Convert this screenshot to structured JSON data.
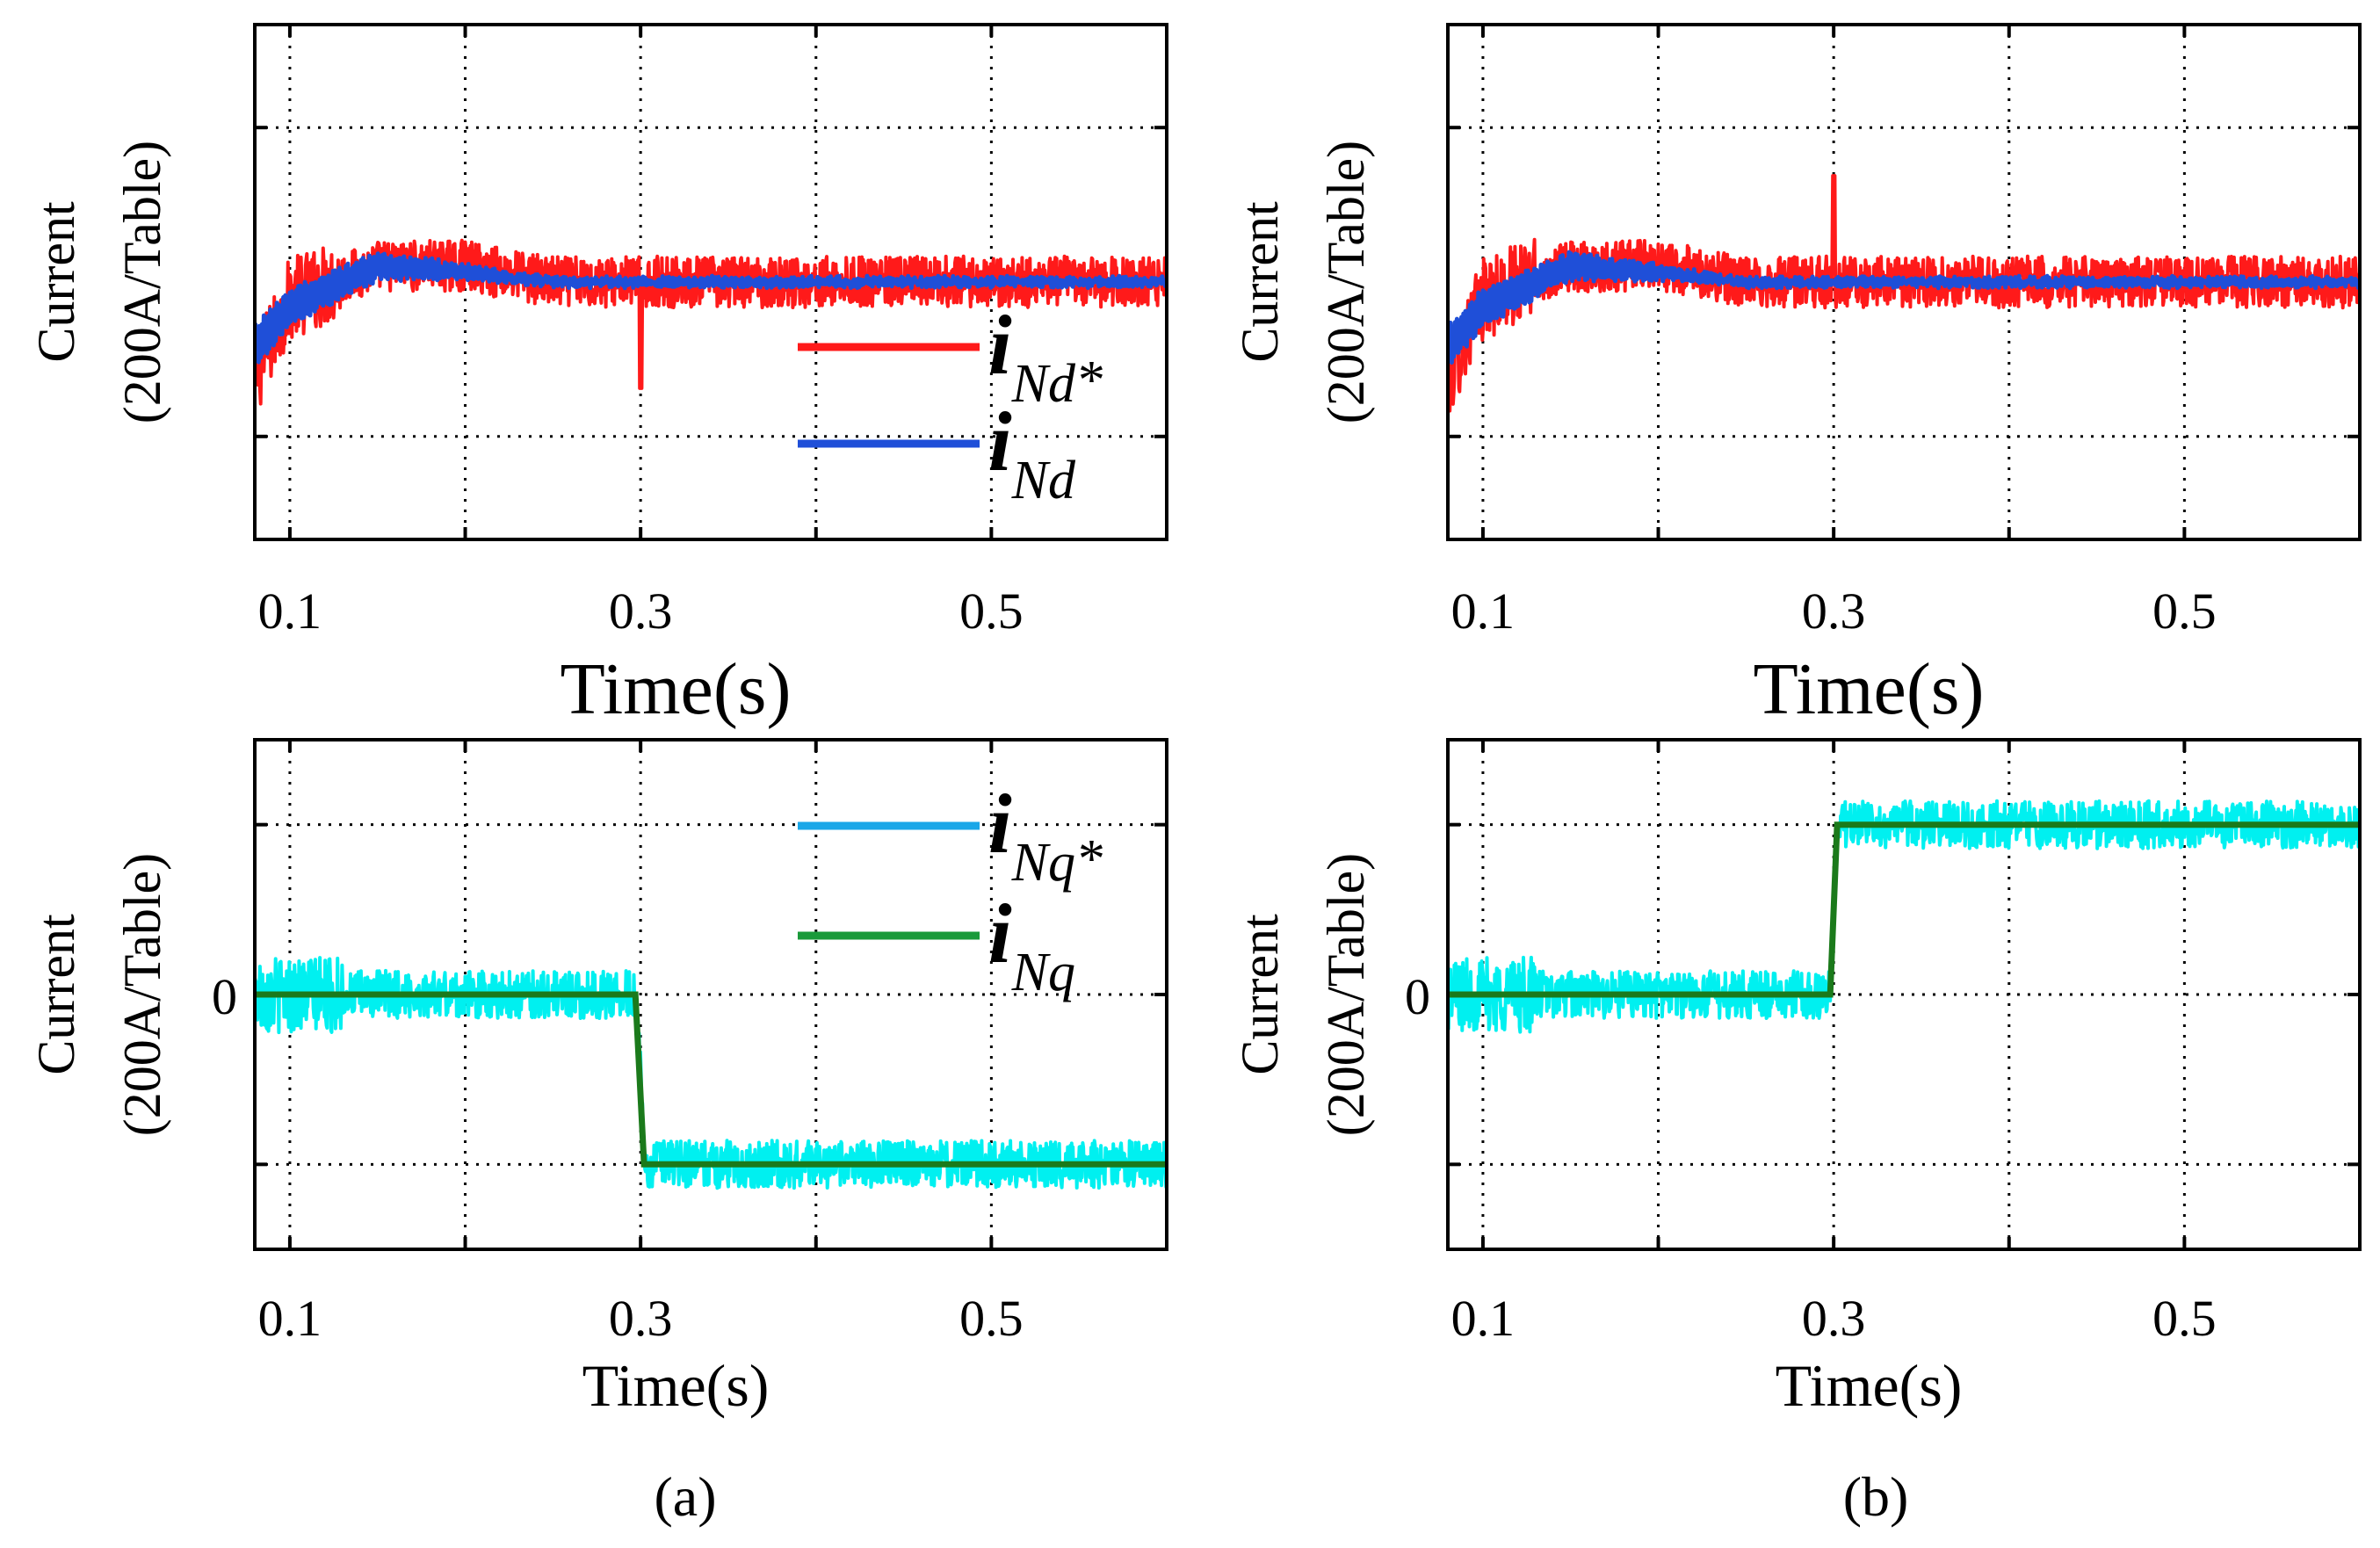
{
  "chart_data": [
    {
      "id": "a-top",
      "type": "line",
      "xlabel": "Time(s)",
      "ylabel": [
        "Current",
        "(200A/Table)"
      ],
      "xlim": [
        0.08,
        0.6
      ],
      "ylim": [
        -0.8,
        0.8
      ],
      "xticks": [
        0.1,
        0.3,
        0.5
      ],
      "xtick_labels": [
        "0.1",
        "0.3",
        "0.5"
      ],
      "ytick_labels": [],
      "grid": true,
      "legend_placement": "right",
      "legend": [
        {
          "symbol": "i",
          "sub": "Nd",
          "sup": "*",
          "color": "#ff1a1a"
        },
        {
          "symbol": "i",
          "sub": "Nd",
          "sup": "",
          "color": "#1f4fd8"
        }
      ],
      "series": [
        {
          "legend_index": 0,
          "color": "#ff1a1a",
          "kind": "noisy-step",
          "x": [
            0.08,
            0.1,
            0.15,
            0.2,
            0.25,
            0.6
          ],
          "y": [
            -0.3,
            -0.05,
            0.05,
            0.05,
            0.0,
            0.0
          ],
          "noise": 0.08,
          "spike": {
            "x": 0.3,
            "y": -0.33
          }
        },
        {
          "legend_index": 1,
          "color": "#1f4fd8",
          "kind": "oscillating",
          "x": [
            0.08,
            0.1,
            0.15,
            0.2,
            0.25,
            0.6
          ],
          "y": [
            -0.2,
            -0.08,
            0.05,
            0.03,
            0.0,
            0.0
          ],
          "noise": 0.02
        }
      ]
    },
    {
      "id": "b-top",
      "type": "line",
      "xlabel": "Time(s)",
      "ylabel": [
        "Current",
        "(200A/Table)"
      ],
      "xlim": [
        0.08,
        0.6
      ],
      "ylim": [
        -0.8,
        0.8
      ],
      "xticks": [
        0.1,
        0.3,
        0.5
      ],
      "xtick_labels": [
        "0.1",
        "0.3",
        "0.5"
      ],
      "ytick_labels": [],
      "grid": true,
      "legend": [],
      "series": [
        {
          "color": "#ff1a1a",
          "kind": "noisy-step",
          "x": [
            0.08,
            0.1,
            0.15,
            0.2,
            0.25,
            0.6
          ],
          "y": [
            -0.3,
            -0.05,
            0.05,
            0.05,
            0.0,
            0.0
          ],
          "noise": 0.08,
          "spike": {
            "x": 0.3,
            "y": 0.33
          }
        },
        {
          "color": "#1f4fd8",
          "kind": "oscillating",
          "x": [
            0.08,
            0.1,
            0.15,
            0.2,
            0.25,
            0.6
          ],
          "y": [
            -0.2,
            -0.08,
            0.05,
            0.03,
            0.0,
            0.0
          ],
          "noise": 0.02
        }
      ]
    },
    {
      "id": "a-bottom",
      "type": "line",
      "xlabel": "Time(s)",
      "ylabel": [
        "Current",
        "(200A/Table)"
      ],
      "xlim": [
        0.08,
        0.6
      ],
      "ylim": [
        -1.5,
        1.5
      ],
      "xticks": [
        0.1,
        0.3,
        0.5
      ],
      "xtick_labels": [
        "0.1",
        "0.3",
        "0.5"
      ],
      "yticks": [
        0
      ],
      "ytick_labels": [
        "0"
      ],
      "grid": true,
      "legend_placement": "top-right",
      "legend": [
        {
          "symbol": "i",
          "sub": "Nq",
          "sup": "*",
          "color": "#1aa7e8"
        },
        {
          "symbol": "i",
          "sub": "Nq",
          "sup": "",
          "color": "#1a9a3a"
        }
      ],
      "series": [
        {
          "legend_index": 0,
          "color": "#00f0f0",
          "kind": "noisy-step",
          "x": [
            0.08,
            0.298,
            0.302,
            0.6
          ],
          "y": [
            0.0,
            0.0,
            -1.0,
            -1.0
          ],
          "noise": 0.14
        },
        {
          "legend_index": 1,
          "color": "#1b7a1b",
          "kind": "step",
          "x": [
            0.08,
            0.297,
            0.302,
            0.6
          ],
          "y": [
            0.0,
            0.0,
            -1.0,
            -1.0
          ]
        }
      ]
    },
    {
      "id": "b-bottom",
      "type": "line",
      "xlabel": "Time(s)",
      "ylabel": [
        "Current",
        "(200A/Table)"
      ],
      "xlim": [
        0.08,
        0.6
      ],
      "ylim": [
        -1.5,
        1.5
      ],
      "xticks": [
        0.1,
        0.3,
        0.5
      ],
      "xtick_labels": [
        "0.1",
        "0.3",
        "0.5"
      ],
      "yticks": [
        0
      ],
      "ytick_labels": [
        "0"
      ],
      "grid": true,
      "legend": [],
      "series": [
        {
          "color": "#00f0f0",
          "kind": "noisy-step",
          "x": [
            0.08,
            0.298,
            0.302,
            0.6
          ],
          "y": [
            0.0,
            0.0,
            1.0,
            1.0
          ],
          "noise": 0.14
        },
        {
          "color": "#1b7a1b",
          "kind": "step",
          "x": [
            0.08,
            0.298,
            0.302,
            0.6
          ],
          "y": [
            0.0,
            0.0,
            1.0,
            1.0
          ]
        }
      ]
    }
  ],
  "captions": [
    "(a)",
    "(b)"
  ]
}
